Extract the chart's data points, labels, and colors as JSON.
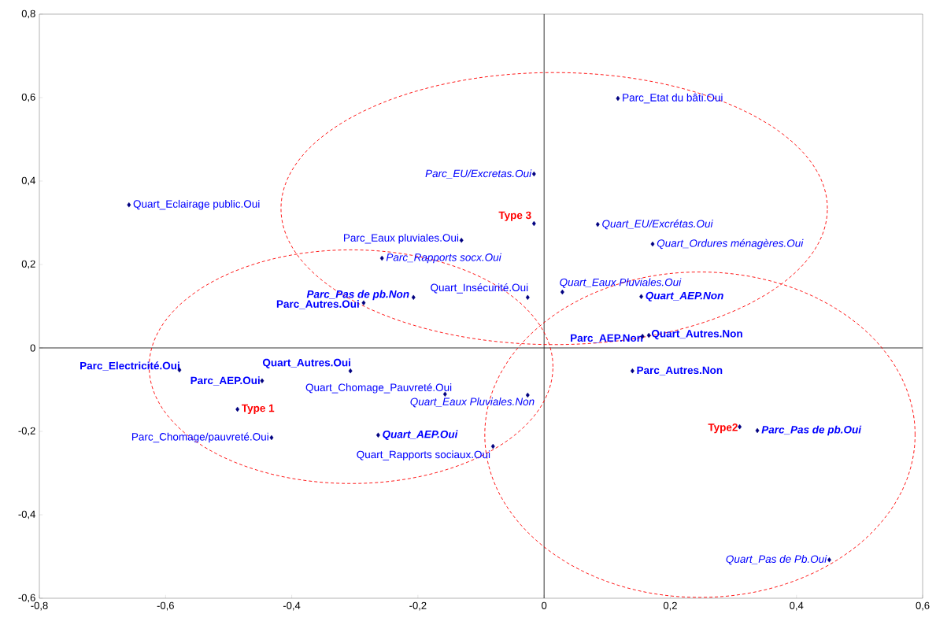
{
  "chart_data": {
    "type": "scatter",
    "marker": "diamond",
    "xlim": [
      -0.8,
      0.6
    ],
    "ylim": [
      -0.6,
      0.8
    ],
    "xticks": [
      {
        "value": -0.8,
        "label": "-0,8"
      },
      {
        "value": -0.6,
        "label": "-0,6"
      },
      {
        "value": -0.4,
        "label": "-0,4"
      },
      {
        "value": -0.2,
        "label": "-0,2"
      },
      0,
      {
        "value": 0.2,
        "label": "0,2"
      },
      {
        "value": 0.4,
        "label": "0,4"
      },
      {
        "value": 0.6,
        "label": "0,6"
      }
    ],
    "yticks": [
      {
        "value": -0.6,
        "label": "-0,6"
      },
      {
        "value": -0.4,
        "label": "-0,4"
      },
      {
        "value": -0.2,
        "label": "-0,2"
      },
      0,
      {
        "value": 0.2,
        "label": "0,2"
      },
      {
        "value": 0.4,
        "label": "0,4"
      },
      {
        "value": 0.6,
        "label": "0,6"
      },
      {
        "value": 0.8,
        "label": "0,8"
      }
    ],
    "series": [
      {
        "color": "#000080",
        "x": [
          -0.658,
          0.117,
          -0.016,
          -0.016,
          0.085,
          0.172,
          -0.131,
          -0.257,
          -0.026,
          0.029,
          -0.207,
          -0.286,
          0.154,
          0.156,
          0.166,
          0.14,
          -0.578,
          -0.307,
          -0.447,
          -0.157,
          -0.026,
          -0.486,
          -0.432,
          -0.263,
          -0.081,
          0.31,
          0.338,
          0.452
        ],
        "values": [
          0.343,
          0.598,
          0.417,
          0.298,
          0.296,
          0.249,
          0.258,
          0.215,
          0.121,
          0.134,
          0.121,
          0.108,
          0.123,
          0.028,
          0.03,
          -0.055,
          -0.053,
          -0.055,
          -0.079,
          -0.111,
          -0.113,
          -0.147,
          -0.215,
          -0.209,
          -0.236,
          -0.189,
          -0.198,
          -0.508
        ]
      }
    ],
    "annotations": [
      {
        "text": "Quart_Eclairage public.Oui",
        "x": -0.658,
        "y": 0.343
      },
      {
        "text": "Parc_Etat du bâti.Oui",
        "x": 0.117,
        "y": 0.598
      },
      {
        "text": "Parc_EU/Excretas.Oui",
        "x": -0.016,
        "y": 0.417
      },
      {
        "text": "Type 3",
        "x": -0.016,
        "y": 0.298
      },
      {
        "text": "Quart_EU/Excrétas.Oui",
        "x": 0.085,
        "y": 0.296
      },
      {
        "text": "Quart_Ordures ménagères.Oui",
        "x": 0.172,
        "y": 0.249
      },
      {
        "text": "Parc_Eaux pluviales.Oui",
        "x": -0.131,
        "y": 0.258
      },
      {
        "text": "Parc_Rapports socx.Oui",
        "x": -0.257,
        "y": 0.215
      },
      {
        "text": "Quart_Insécurité.Oui",
        "x": -0.026,
        "y": 0.121
      },
      {
        "text": "Quart_Eaux Pluviales.Oui",
        "x": 0.029,
        "y": 0.134
      },
      {
        "text": "Parc_Pas de pb.Non",
        "x": -0.207,
        "y": 0.121
      },
      {
        "text": "Parc_Autres.Oui",
        "x": -0.286,
        "y": 0.108
      },
      {
        "text": "Quart_AEP.Non",
        "x": 0.154,
        "y": 0.123
      },
      {
        "text": "Parc_AEP.Non",
        "x": 0.156,
        "y": 0.028
      },
      {
        "text": "Quart_Autres.Non",
        "x": 0.166,
        "y": 0.03
      },
      {
        "text": "Parc_Autres.Non",
        "x": 0.14,
        "y": -0.055
      },
      {
        "text": "Parc_Electricité.Oui",
        "x": -0.578,
        "y": -0.053
      },
      {
        "text": "Quart_Autres.Oui",
        "x": -0.307,
        "y": -0.055
      },
      {
        "text": "Parc_AEP.Oui",
        "x": -0.447,
        "y": -0.079
      },
      {
        "text": "Quart_Chomage_Pauvreté.Oui",
        "x": -0.157,
        "y": -0.111
      },
      {
        "text": "Quart_Eaux Pluviales.Non",
        "x": -0.026,
        "y": -0.113
      },
      {
        "text": "Type 1",
        "x": -0.486,
        "y": -0.147
      },
      {
        "text": "Parc_Chomage/pauvreté.Oui",
        "x": -0.432,
        "y": -0.215
      },
      {
        "text": "Quart_AEP.Oui",
        "x": -0.263,
        "y": -0.209
      },
      {
        "text": "Quart_Rapports sociaux.Oui",
        "x": -0.081,
        "y": -0.236
      },
      {
        "text": "Type2",
        "x": 0.31,
        "y": -0.189
      },
      {
        "text": "Parc_Pas de pb.Oui",
        "x": 0.338,
        "y": -0.198
      },
      {
        "text": "Quart_Pas de Pb.Oui",
        "x": 0.452,
        "y": -0.508
      }
    ]
  }
}
